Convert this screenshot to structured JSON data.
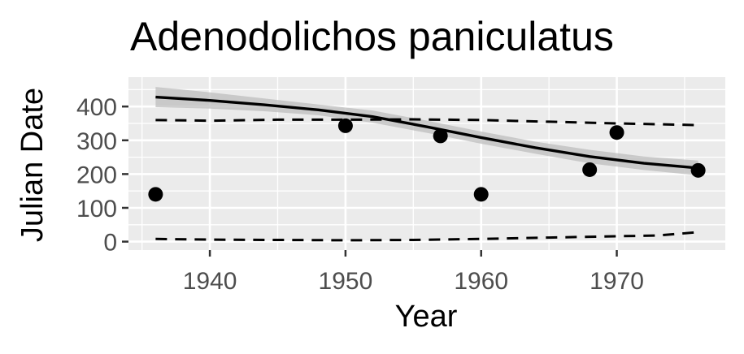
{
  "chart_data": {
    "type": "scatter",
    "title": "Adenodolichos paniculatus",
    "xlabel": "Year",
    "ylabel": "Julian Date",
    "xlim": [
      1934,
      1978
    ],
    "ylim": [
      -25,
      487
    ],
    "x_ticks": [
      1940,
      1950,
      1960,
      1970
    ],
    "y_ticks": [
      0,
      100,
      200,
      300,
      400
    ],
    "grid": true,
    "legend": "none",
    "points": {
      "x": [
        1936,
        1950,
        1957,
        1960,
        1968,
        1970,
        1976
      ],
      "y": [
        140,
        343,
        313,
        140,
        213,
        323,
        211
      ]
    },
    "fit_line": {
      "x": [
        1936,
        1940,
        1944,
        1948,
        1952,
        1956,
        1960,
        1964,
        1968,
        1972,
        1976
      ],
      "y": [
        428,
        418,
        405,
        390,
        370,
        340,
        308,
        278,
        252,
        232,
        218
      ]
    },
    "confidence_band": {
      "x": [
        1936,
        1940,
        1944,
        1948,
        1952,
        1956,
        1960,
        1964,
        1968,
        1972,
        1976
      ],
      "lower": [
        398,
        394,
        386,
        374,
        352,
        322,
        290,
        260,
        232,
        212,
        196
      ],
      "upper": [
        458,
        442,
        424,
        406,
        388,
        358,
        326,
        296,
        272,
        252,
        240
      ]
    },
    "upper_dashed": {
      "x": [
        1936,
        1940,
        1945,
        1950,
        1955,
        1960,
        1965,
        1970,
        1976
      ],
      "y": [
        360,
        358,
        361,
        361,
        362,
        360,
        355,
        350,
        345
      ]
    },
    "lower_dashed": {
      "x": [
        1936,
        1940,
        1945,
        1950,
        1955,
        1960,
        1965,
        1970,
        1973,
        1976
      ],
      "y": [
        8,
        6,
        5,
        4,
        5,
        8,
        12,
        16,
        18,
        28
      ]
    },
    "colors": {
      "panel": "#ebebeb",
      "grid": "#ffffff",
      "points": "#000000",
      "fit": "#000000",
      "band": "#bebebe",
      "dashed": "#000000"
    }
  }
}
